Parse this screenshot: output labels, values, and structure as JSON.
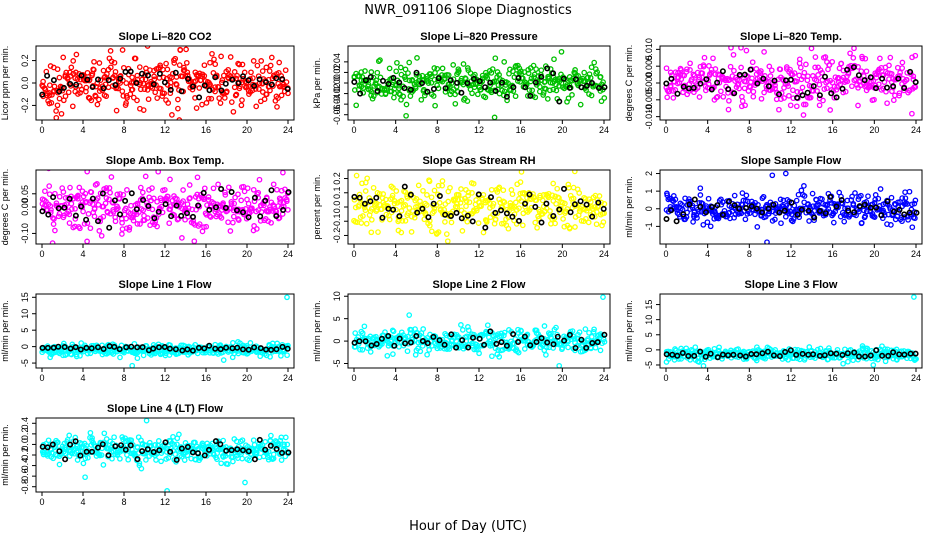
{
  "figure": {
    "title": "NWR_091106  Slope Diagnostics",
    "xlabel": "Hour of Day (UTC)"
  },
  "chart_data": [
    {
      "type": "scatter",
      "title": "Slope Li–820 CO2",
      "xlabel": "",
      "ylabel": "Licor ppm per min.",
      "xlim": [
        0,
        24
      ],
      "ylim": [
        -0.33,
        0.33
      ],
      "xticks": [
        "0",
        "4",
        "8",
        "12",
        "16",
        "20",
        "24"
      ],
      "yticks": [
        -0.2,
        0.0,
        0.2
      ],
      "ytick_labels": [
        "-0.2",
        "0.0",
        "0.2"
      ],
      "series": [
        {
          "color": "#ff0000",
          "n": 380,
          "mean": 0.0,
          "sd": 0.11,
          "outliers": [
            [
              1.4,
              -0.31
            ],
            [
              10.3,
              0.33
            ],
            [
              13.4,
              -0.33
            ]
          ]
        },
        {
          "color": "#000000",
          "n": 45,
          "mean": 0.0,
          "sd": 0.06,
          "outliers": []
        }
      ]
    },
    {
      "type": "scatter",
      "title": "Slope Li–820 Pressure",
      "xlabel": "",
      "ylabel": "kPa per min.",
      "xlim": [
        0,
        24
      ],
      "ylim": [
        -0.07,
        0.07
      ],
      "xticks": [
        "0",
        "4",
        "8",
        "12",
        "16",
        "20",
        "24"
      ],
      "yticks": [
        -0.06,
        -0.04,
        -0.02,
        0.0,
        0.02,
        0.04
      ],
      "ytick_labels": [
        "-0.06",
        "-0.04",
        "-0.02",
        "0.00",
        "0.02",
        "0.04"
      ],
      "series": [
        {
          "color": "#00c000",
          "n": 380,
          "mean": 0.0,
          "sd": 0.016,
          "outliers": [
            [
              5.0,
              -0.062
            ],
            [
              13.5,
              -0.065
            ],
            [
              19.2,
              0.045
            ]
          ]
        },
        {
          "color": "#000000",
          "n": 45,
          "mean": 0.0,
          "sd": 0.012,
          "outliers": []
        }
      ]
    },
    {
      "type": "scatter",
      "title": "Slope Li–820 Temp.",
      "xlabel": "",
      "ylabel": "degrees C per min.",
      "xlim": [
        0,
        24
      ],
      "ylim": [
        -0.011,
        0.011
      ],
      "xticks": [
        "0",
        "4",
        "8",
        "12",
        "16",
        "20",
        "24"
      ],
      "yticks": [
        -0.01,
        -0.005,
        0.0,
        0.005,
        0.01
      ],
      "ytick_labels": [
        "-0.010",
        "-0.005",
        "0.000",
        "0.005",
        "0.010"
      ],
      "series": [
        {
          "color": "#ff00ff",
          "n": 380,
          "mean": 0.001,
          "sd": 0.0035,
          "outliers": [
            [
              7.2,
              0.0105
            ],
            [
              13.2,
              -0.0095
            ]
          ]
        },
        {
          "color": "#000000",
          "n": 45,
          "mean": 0.0,
          "sd": 0.0025,
          "outliers": []
        }
      ]
    },
    {
      "type": "scatter",
      "title": "Slope Amb. Box Temp.",
      "xlabel": "",
      "ylabel": "degrees C per min.",
      "xlim": [
        0,
        24
      ],
      "ylim": [
        -0.14,
        0.14
      ],
      "xticks": [
        "0",
        "4",
        "8",
        "12",
        "16",
        "20",
        "24"
      ],
      "yticks": [
        -0.1,
        0.0,
        0.05
      ],
      "ytick_labels": [
        "-0.10",
        "0.00",
        "0.05"
      ],
      "series": [
        {
          "color": "#ff00ff",
          "n": 380,
          "mean": 0.0,
          "sd": 0.05,
          "outliers": [
            [
              4.4,
              -0.13
            ],
            [
              23.5,
              0.13
            ]
          ]
        },
        {
          "color": "#000000",
          "n": 45,
          "mean": 0.0,
          "sd": 0.035,
          "outliers": []
        }
      ]
    },
    {
      "type": "scatter",
      "title": "Slope Gas Stream RH",
      "xlabel": "",
      "ylabel": "percent per min.",
      "xlim": [
        0,
        24
      ],
      "ylim": [
        -0.26,
        0.26
      ],
      "xticks": [
        "0",
        "4",
        "8",
        "12",
        "16",
        "20",
        "24"
      ],
      "yticks": [
        -0.2,
        -0.1,
        0.0,
        0.1,
        0.2
      ],
      "ytick_labels": [
        "-0.2",
        "-0.1",
        "0.0",
        "0.1",
        "0.2"
      ],
      "series": [
        {
          "color": "#ffff00",
          "n": 380,
          "mean": 0.0,
          "sd": 0.08,
          "outliers": [
            [
              21.2,
              0.25
            ],
            [
              9.0,
              -0.24
            ]
          ]
        },
        {
          "color": "#000000",
          "n": 45,
          "mean": 0.0,
          "sd": 0.06,
          "outliers": []
        }
      ]
    },
    {
      "type": "scatter",
      "title": "Slope Sample Flow",
      "xlabel": "",
      "ylabel": "ml/min per min.",
      "xlim": [
        0,
        24
      ],
      "ylim": [
        -2.0,
        2.2
      ],
      "xticks": [
        "0",
        "4",
        "8",
        "12",
        "16",
        "20",
        "24"
      ],
      "yticks": [
        -1,
        0,
        1,
        2
      ],
      "ytick_labels": [
        "-1",
        "0",
        "1",
        "2"
      ],
      "series": [
        {
          "color": "#0000ff",
          "n": 380,
          "mean": 0.0,
          "sd": 0.4,
          "outliers": [
            [
              10.2,
              1.9
            ],
            [
              9.7,
              -1.9
            ],
            [
              11.5,
              2.0
            ]
          ]
        },
        {
          "color": "#000000",
          "n": 45,
          "mean": 0.0,
          "sd": 0.3,
          "outliers": []
        }
      ]
    },
    {
      "type": "scatter",
      "title": "Slope Line 1 Flow",
      "xlabel": "",
      "ylabel": "ml/min per min.",
      "xlim": [
        0,
        24
      ],
      "ylim": [
        -6.5,
        16
      ],
      "xticks": [
        "0",
        "4",
        "8",
        "12",
        "16",
        "20",
        "24"
      ],
      "yticks": [
        -5,
        0,
        5,
        10,
        15
      ],
      "ytick_labels": [
        "-5",
        "0",
        "5",
        "10",
        "15"
      ],
      "series": [
        {
          "color": "#00ffff",
          "n": 380,
          "mean": -1.0,
          "sd": 0.9,
          "outliers": [
            [
              23.9,
              15.0
            ],
            [
              8.8,
              -5.8
            ]
          ]
        },
        {
          "color": "#000000",
          "n": 45,
          "mean": -0.5,
          "sd": 0.4,
          "outliers": []
        }
      ]
    },
    {
      "type": "scatter",
      "title": "Slope Line 2 Flow",
      "xlabel": "",
      "ylabel": "ml/min per min.",
      "xlim": [
        0,
        24
      ],
      "ylim": [
        -6,
        10.5
      ],
      "xticks": [
        "0",
        "4",
        "8",
        "12",
        "16",
        "20",
        "24"
      ],
      "yticks": [
        -5,
        0,
        5,
        10
      ],
      "ytick_labels": [
        "-5",
        "0",
        "5",
        "10"
      ],
      "series": [
        {
          "color": "#00ffff",
          "n": 380,
          "mean": 0.0,
          "sd": 1.3,
          "outliers": [
            [
              23.9,
              9.8
            ],
            [
              19.7,
              -5.5
            ],
            [
              5.3,
              5.8
            ]
          ]
        },
        {
          "color": "#000000",
          "n": 45,
          "mean": 0.0,
          "sd": 0.9,
          "outliers": []
        }
      ]
    },
    {
      "type": "scatter",
      "title": "Slope Line 3 Flow",
      "xlabel": "",
      "ylabel": "ml/min per min.",
      "xlim": [
        0,
        24
      ],
      "ylim": [
        -6,
        18.5
      ],
      "xticks": [
        "0",
        "4",
        "8",
        "12",
        "16",
        "20",
        "24"
      ],
      "yticks": [
        -5,
        0,
        5,
        10,
        15
      ],
      "ytick_labels": [
        "-5",
        "0",
        "5",
        "10",
        "15"
      ],
      "series": [
        {
          "color": "#00ffff",
          "n": 380,
          "mean": -1.5,
          "sd": 1.0,
          "outliers": [
            [
              23.8,
              17.5
            ],
            [
              19.9,
              -5.0
            ],
            [
              3.6,
              -5.3
            ]
          ]
        },
        {
          "color": "#000000",
          "n": 45,
          "mean": -1.5,
          "sd": 0.6,
          "outliers": []
        }
      ]
    },
    {
      "type": "scatter",
      "title": "Slope Line 4 (LT) Flow",
      "xlabel": "",
      "ylabel": "ml/min per min.",
      "xlim": [
        0,
        24
      ],
      "ylim": [
        -0.9,
        0.5
      ],
      "xticks": [
        "0",
        "4",
        "8",
        "12",
        "16",
        "20",
        "24"
      ],
      "yticks": [
        -0.8,
        -0.6,
        -0.4,
        -0.2,
        0.0,
        0.2,
        0.4
      ],
      "ytick_labels": [
        "-0.8",
        "-0.6",
        "-0.4",
        "-0.2",
        "0.0",
        "0.2",
        "0.4"
      ],
      "series": [
        {
          "color": "#00ffff",
          "n": 380,
          "mean": -0.1,
          "sd": 0.12,
          "outliers": [
            [
              4.2,
              -0.62
            ],
            [
              12.2,
              -0.88
            ],
            [
              19.8,
              -0.72
            ],
            [
              10.2,
              0.45
            ]
          ]
        },
        {
          "color": "#000000",
          "n": 45,
          "mean": -0.1,
          "sd": 0.09,
          "outliers": []
        }
      ]
    }
  ]
}
